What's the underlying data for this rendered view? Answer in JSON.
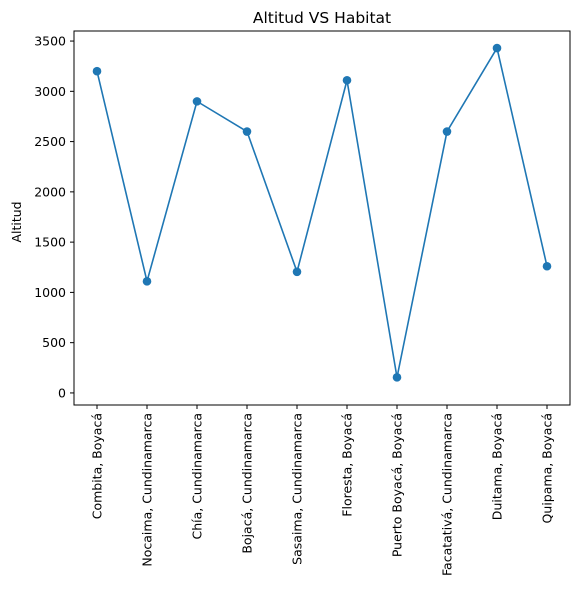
{
  "chart_data": {
    "type": "line",
    "title": "Altitud VS Habitat",
    "xlabel": "",
    "ylabel": "Altitud",
    "categories": [
      "Combita, Boyacá",
      "Nocaima, Cundinamarca",
      "Chía, Cundinamarca",
      "Bojacá, Cundinamarca",
      "Sasaima, Cundinamarca",
      "Floresta, Boyacá",
      "Puerto Boyacá, Boyacá",
      "Facatativá, Cundinamarca",
      "Duitama, Boyacá",
      "Quipama, Boyacá"
    ],
    "series": [
      {
        "values": [
          3200,
          1110,
          2900,
          2600,
          1205,
          3110,
          155,
          2600,
          3430,
          1260
        ],
        "color": "#1f77b4",
        "marker": "circle"
      }
    ],
    "ylim": [
      0,
      3500
    ],
    "yticks": [
      0,
      500,
      1000,
      1500,
      2000,
      2500,
      3000,
      3500
    ],
    "grid": false,
    "legend": "none"
  }
}
